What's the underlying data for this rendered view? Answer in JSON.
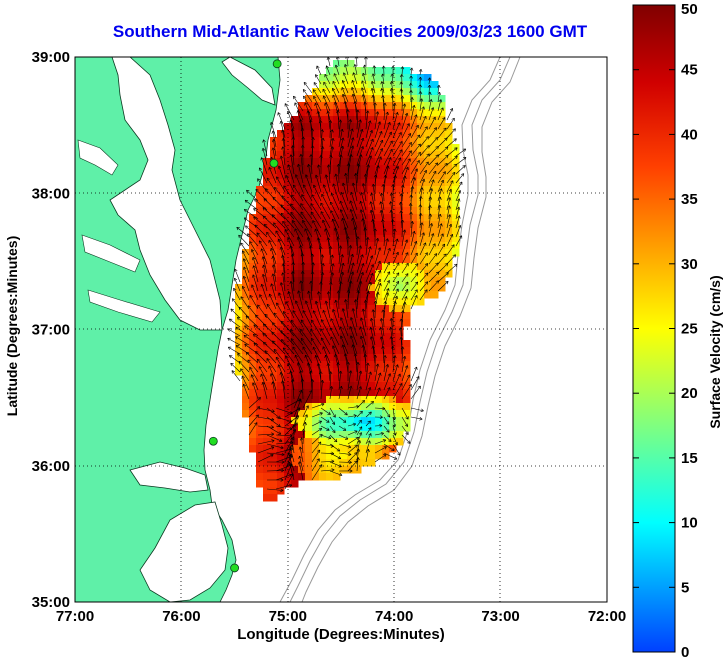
{
  "title": "Southern Mid-Atlantic Raw Velocities 2009/03/23 1600 GMT",
  "xlabel": "Longitude (Degrees:Minutes)",
  "ylabel": "Latitude (Degrees:Minutes)",
  "colorbar_label": "Surface Velocity (cm/s)",
  "colors": {
    "land": "#5ff0a8",
    "land_edge": "#0a3a20",
    "bathymetry": "#9a9a9a",
    "station": "#22dd22",
    "vector": "#000000"
  },
  "chart_data": {
    "type": "heatmap",
    "title": "Southern Mid-Atlantic Raw Velocities 2009/03/23 1600 GMT",
    "xlabel": "Longitude (Degrees:Minutes)",
    "ylabel": "Latitude (Degrees:Minutes)",
    "x_ticks": [
      "77:00",
      "76:00",
      "75:00",
      "74:00",
      "73:00",
      "72:00"
    ],
    "y_ticks": [
      "35:00",
      "36:00",
      "37:00",
      "38:00",
      "39:00"
    ],
    "xlim_deg_west": [
      77,
      72
    ],
    "ylim_deg_north": [
      35,
      39
    ],
    "grid": "dotted",
    "colorbar": {
      "label": "Surface Velocity (cm/s)",
      "range": [
        0,
        50
      ],
      "ticks": [
        "0",
        "5",
        "10",
        "15",
        "20",
        "25",
        "30",
        "35",
        "40",
        "45",
        "50"
      ]
    },
    "stations": [
      {
        "lon": -75.1,
        "lat": 38.95
      },
      {
        "lon": -75.13,
        "lat": 38.22
      },
      {
        "lon": -75.7,
        "lat": 36.18
      },
      {
        "lon": -75.5,
        "lat": 35.25
      }
    ]
  }
}
